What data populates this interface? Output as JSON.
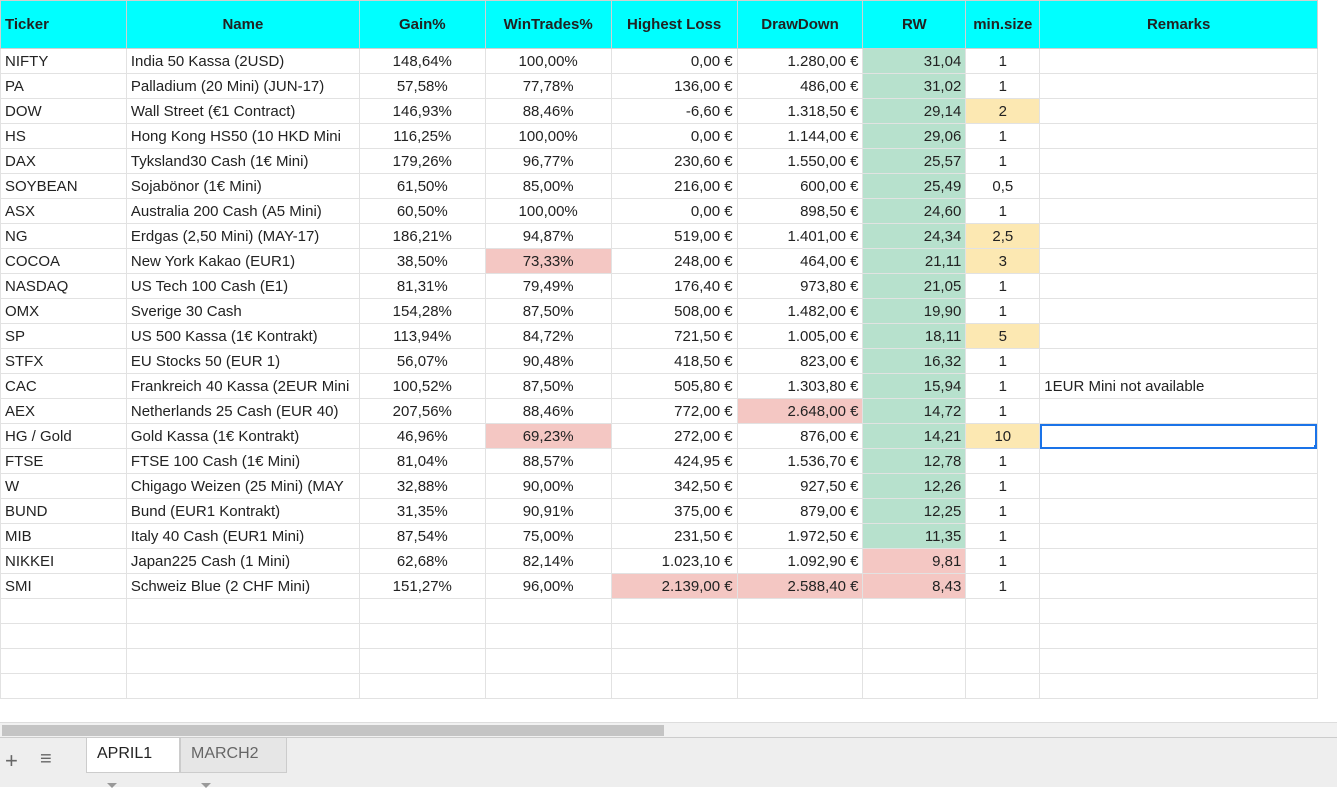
{
  "colors": {
    "header": "#00ffff",
    "green": "#b7e1cd",
    "yellow": "#fce8b2",
    "red": "#f4c7c3",
    "selection": "#1a73e8"
  },
  "columns": [
    "Ticker",
    "Name",
    "Gain%",
    "WinTrades%",
    "Highest Loss",
    "DrawDown",
    "RW",
    "min.size",
    "Remarks"
  ],
  "rows": [
    {
      "cells": [
        "NIFTY",
        "India 50 Kassa (2USD)",
        "148,64%",
        "100,00%",
        "0,00 €",
        "1.280,00 €",
        "31,04",
        "1",
        ""
      ],
      "fills": {
        "6": "green"
      }
    },
    {
      "cells": [
        "PA",
        "Palladium (20 Mini) (JUN-17)",
        "57,58%",
        "77,78%",
        "136,00 €",
        "486,00 €",
        "31,02",
        "1",
        ""
      ],
      "fills": {
        "6": "green"
      }
    },
    {
      "cells": [
        "DOW",
        "Wall Street (€1 Contract)",
        "146,93%",
        "88,46%",
        "-6,60 €",
        "1.318,50 €",
        "29,14",
        "2",
        ""
      ],
      "fills": {
        "6": "green",
        "7": "yellow"
      }
    },
    {
      "cells": [
        "HS",
        "Hong Kong HS50 (10 HKD Mini",
        "116,25%",
        "100,00%",
        "0,00 €",
        "1.144,00 €",
        "29,06",
        "1",
        ""
      ],
      "fills": {
        "6": "green"
      }
    },
    {
      "cells": [
        "DAX",
        "Tyksland30 Cash (1€ Mini)",
        "179,26%",
        "96,77%",
        "230,60 €",
        "1.550,00 €",
        "25,57",
        "1",
        ""
      ],
      "fills": {
        "6": "green"
      }
    },
    {
      "cells": [
        "SOYBEAN",
        "Sojabönor (1€ Mini)",
        "61,50%",
        "85,00%",
        "216,00 €",
        "600,00 €",
        "25,49",
        "0,5",
        ""
      ],
      "fills": {
        "6": "green"
      }
    },
    {
      "cells": [
        "ASX",
        "Australia 200 Cash (A5 Mini)",
        "60,50%",
        "100,00%",
        "0,00 €",
        "898,50 €",
        "24,60",
        "1",
        ""
      ],
      "fills": {
        "6": "green"
      }
    },
    {
      "cells": [
        "NG",
        "Erdgas (2,50 Mini) (MAY-17)",
        "186,21%",
        "94,87%",
        "519,00 €",
        "1.401,00 €",
        "24,34",
        "2,5",
        ""
      ],
      "fills": {
        "6": "green",
        "7": "yellow"
      }
    },
    {
      "cells": [
        "COCOA",
        "New York Kakao (EUR1)",
        "38,50%",
        "73,33%",
        "248,00 €",
        "464,00 €",
        "21,11",
        "3",
        ""
      ],
      "fills": {
        "3": "red",
        "6": "green",
        "7": "yellow"
      }
    },
    {
      "cells": [
        "NASDAQ",
        "US Tech 100 Cash (E1)",
        "81,31%",
        "79,49%",
        "176,40 €",
        "973,80 €",
        "21,05",
        "1",
        ""
      ],
      "fills": {
        "6": "green"
      }
    },
    {
      "cells": [
        "OMX",
        "Sverige 30 Cash",
        "154,28%",
        "87,50%",
        "508,00 €",
        "1.482,00 €",
        "19,90",
        "1",
        ""
      ],
      "fills": {
        "6": "green"
      }
    },
    {
      "cells": [
        "SP",
        "US 500 Kassa (1€ Kontrakt)",
        "113,94%",
        "84,72%",
        "721,50 €",
        "1.005,00 €",
        "18,11",
        "5",
        ""
      ],
      "fills": {
        "6": "green",
        "7": "yellow"
      }
    },
    {
      "cells": [
        "STFX",
        "EU Stocks 50 (EUR 1)",
        "56,07%",
        "90,48%",
        "418,50 €",
        "823,00 €",
        "16,32",
        "1",
        ""
      ],
      "fills": {
        "6": "green"
      }
    },
    {
      "cells": [
        "CAC",
        "Frankreich 40 Kassa (2EUR Mini",
        "100,52%",
        "87,50%",
        "505,80 €",
        "1.303,80 €",
        "15,94",
        "1",
        "1EUR Mini not available"
      ],
      "fills": {
        "6": "green"
      }
    },
    {
      "cells": [
        "AEX",
        "Netherlands 25 Cash (EUR 40)",
        "207,56%",
        "88,46%",
        "772,00 €",
        "2.648,00 €",
        "14,72",
        "1",
        ""
      ],
      "fills": {
        "5": "red",
        "6": "green"
      }
    },
    {
      "cells": [
        "HG / Gold",
        "Gold Kassa (1€ Kontrakt)",
        "46,96%",
        "69,23%",
        "272,00 €",
        "876,00 €",
        "14,21",
        "10",
        ""
      ],
      "fills": {
        "3": "red",
        "6": "green",
        "7": "yellow"
      },
      "selected": 8
    },
    {
      "cells": [
        "FTSE",
        "FTSE 100 Cash (1€ Mini)",
        "81,04%",
        "88,57%",
        "424,95 €",
        "1.536,70 €",
        "12,78",
        "1",
        ""
      ],
      "fills": {
        "6": "green"
      }
    },
    {
      "cells": [
        "W",
        "Chigago Weizen (25 Mini) (MAY",
        "32,88%",
        "90,00%",
        "342,50 €",
        "927,50 €",
        "12,26",
        "1",
        ""
      ],
      "fills": {
        "6": "green"
      }
    },
    {
      "cells": [
        "BUND",
        "Bund (EUR1 Kontrakt)",
        "31,35%",
        "90,91%",
        "375,00 €",
        "879,00 €",
        "12,25",
        "1",
        ""
      ],
      "fills": {
        "6": "green"
      }
    },
    {
      "cells": [
        "MIB",
        "Italy 40 Cash (EUR1 Mini)",
        "87,54%",
        "75,00%",
        "231,50 €",
        "1.972,50 €",
        "11,35",
        "1",
        ""
      ],
      "fills": {
        "6": "green"
      }
    },
    {
      "cells": [
        "NIKKEI",
        "Japan225 Cash (1 Mini)",
        "62,68%",
        "82,14%",
        "1.023,10 €",
        "1.092,90 €",
        "9,81",
        "1",
        ""
      ],
      "fills": {
        "6": "red"
      }
    },
    {
      "cells": [
        "SMI",
        "Schweiz Blue (2 CHF Mini)",
        "151,27%",
        "96,00%",
        "2.139,00 €",
        "2.588,40 €",
        "8,43",
        "1",
        ""
      ],
      "fills": {
        "4": "red",
        "5": "red",
        "6": "red"
      }
    }
  ],
  "sheets": [
    {
      "label": "APRIL1",
      "active": true
    },
    {
      "label": "MARCH2",
      "active": false
    }
  ],
  "icons": {
    "add_sheet": "plus-icon",
    "all_sheets": "list-icon",
    "tab_menu": "caret-down-icon"
  }
}
